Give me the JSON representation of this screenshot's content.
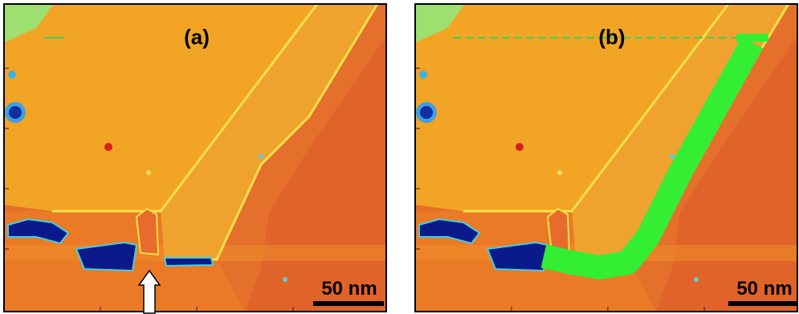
{
  "panels": [
    {
      "label": "(a)",
      "scale_bar": "50 nm"
    },
    {
      "label": "(b)",
      "scale_bar": "50 nm"
    }
  ]
}
